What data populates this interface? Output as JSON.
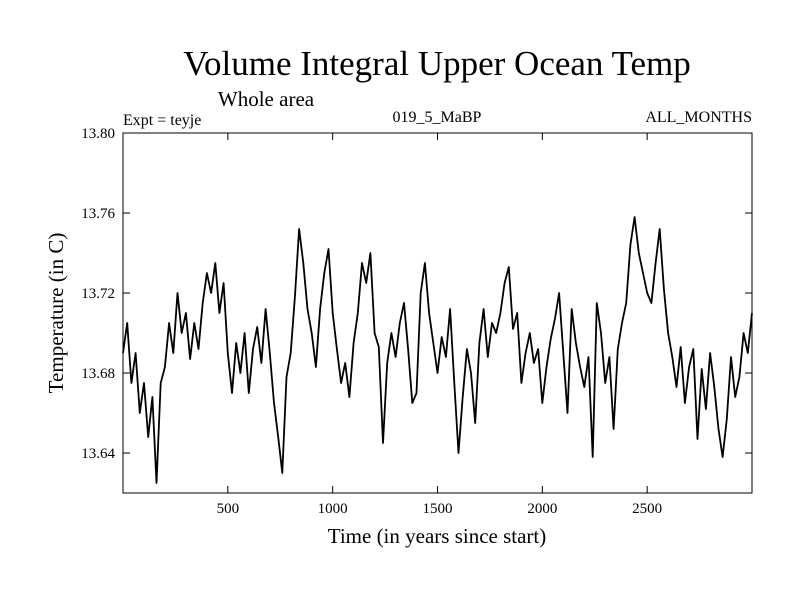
{
  "chart_data": {
    "type": "line",
    "title": "Volume Integral Upper Ocean Temp",
    "subtitle": "Whole area",
    "experiment": "Expt = teyje",
    "run_label": "019_5_MaBP",
    "months_label": "ALL_MONTHS",
    "xlabel": "Time (in years since start)",
    "ylabel": "Temperature (in C)",
    "xlim": [
      0,
      3000
    ],
    "ylim": [
      13.62,
      13.8
    ],
    "x_ticks": [
      500,
      1000,
      1500,
      2000,
      2500
    ],
    "y_ticks": [
      13.64,
      13.68,
      13.72,
      13.76,
      13.8
    ],
    "y_tick_labels": [
      "13.64",
      "13.68",
      "13.72",
      "13.76",
      "13.80"
    ],
    "grid": false,
    "series": [
      {
        "name": "Volume Integral Upper Ocean Temp",
        "x": [
          0,
          20,
          40,
          60,
          80,
          100,
          120,
          140,
          160,
          180,
          200,
          220,
          240,
          260,
          280,
          300,
          320,
          340,
          360,
          380,
          400,
          420,
          440,
          460,
          480,
          500,
          520,
          540,
          560,
          580,
          600,
          620,
          640,
          660,
          680,
          700,
          720,
          740,
          760,
          780,
          800,
          820,
          840,
          860,
          880,
          900,
          920,
          940,
          960,
          980,
          1000,
          1020,
          1040,
          1060,
          1080,
          1100,
          1120,
          1140,
          1160,
          1180,
          1200,
          1220,
          1240,
          1260,
          1280,
          1300,
          1320,
          1340,
          1360,
          1380,
          1400,
          1420,
          1440,
          1460,
          1480,
          1500,
          1520,
          1540,
          1560,
          1580,
          1600,
          1620,
          1640,
          1660,
          1680,
          1700,
          1720,
          1740,
          1760,
          1780,
          1800,
          1820,
          1840,
          1860,
          1880,
          1900,
          1920,
          1940,
          1960,
          1980,
          2000,
          2020,
          2040,
          2060,
          2080,
          2100,
          2120,
          2140,
          2160,
          2180,
          2200,
          2220,
          2240,
          2260,
          2280,
          2300,
          2320,
          2340,
          2360,
          2380,
          2400,
          2420,
          2440,
          2460,
          2480,
          2500,
          2520,
          2540,
          2560,
          2580,
          2600,
          2620,
          2640,
          2660,
          2680,
          2700,
          2720,
          2740,
          2760,
          2780,
          2800,
          2820,
          2840,
          2860,
          2880,
          2900,
          2920,
          2940,
          2960,
          2980,
          3000
        ],
        "values": [
          13.69,
          13.705,
          13.675,
          13.69,
          13.66,
          13.675,
          13.648,
          13.668,
          13.625,
          13.675,
          13.683,
          13.705,
          13.69,
          13.72,
          13.7,
          13.71,
          13.687,
          13.705,
          13.692,
          13.715,
          13.73,
          13.72,
          13.735,
          13.71,
          13.725,
          13.69,
          13.67,
          13.695,
          13.68,
          13.7,
          13.67,
          13.692,
          13.703,
          13.685,
          13.712,
          13.69,
          13.665,
          13.648,
          13.63,
          13.678,
          13.69,
          13.718,
          13.752,
          13.735,
          13.712,
          13.7,
          13.683,
          13.712,
          13.73,
          13.742,
          13.71,
          13.692,
          13.675,
          13.685,
          13.668,
          13.695,
          13.71,
          13.735,
          13.725,
          13.74,
          13.7,
          13.693,
          13.645,
          13.685,
          13.7,
          13.688,
          13.705,
          13.715,
          13.692,
          13.665,
          13.67,
          13.72,
          13.735,
          13.71,
          13.695,
          13.68,
          13.698,
          13.688,
          13.712,
          13.675,
          13.64,
          13.668,
          13.692,
          13.68,
          13.655,
          13.695,
          13.712,
          13.688,
          13.705,
          13.7,
          13.71,
          13.725,
          13.733,
          13.702,
          13.71,
          13.675,
          13.69,
          13.7,
          13.685,
          13.692,
          13.665,
          13.683,
          13.697,
          13.707,
          13.72,
          13.69,
          13.66,
          13.712,
          13.695,
          13.683,
          13.673,
          13.688,
          13.638,
          13.715,
          13.7,
          13.675,
          13.688,
          13.652,
          13.692,
          13.705,
          13.715,
          13.744,
          13.758,
          13.74,
          13.73,
          13.72,
          13.715,
          13.735,
          13.752,
          13.722,
          13.7,
          13.688,
          13.673,
          13.693,
          13.665,
          13.683,
          13.692,
          13.647,
          13.682,
          13.662,
          13.69,
          13.673,
          13.652,
          13.638,
          13.657,
          13.688,
          13.668,
          13.678,
          13.7,
          13.69,
          13.71
        ]
      }
    ]
  }
}
